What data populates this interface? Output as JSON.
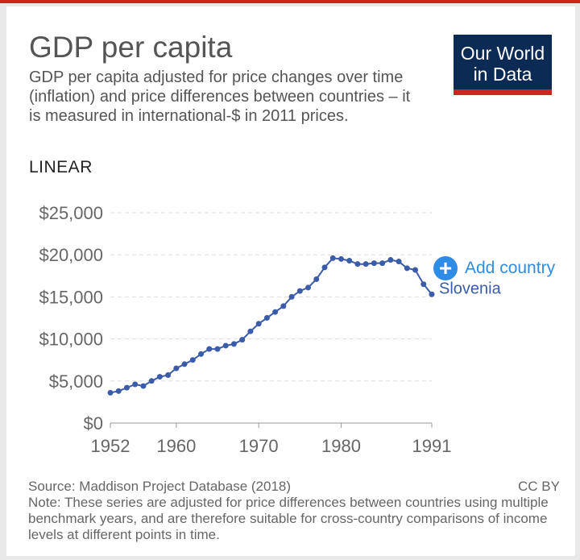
{
  "header": {
    "title": "GDP per capita",
    "subtitle": "GDP per capita adjusted for price changes over time (inflation) and price differences between countries – it is measured in international-$ in 2011 prices.",
    "logo_line1": "Our World",
    "logo_line2": "in Data"
  },
  "controls": {
    "scale_toggle": "LINEAR",
    "add_country": "Add country"
  },
  "footer": {
    "source": "Source: Maddison Project Database (2018)",
    "license": "CC BY",
    "note": "Note: These series are adjusted for price differences between countries using multiple benchmark years, and are therefore suitable for cross-country comparisons of income levels at different points in time."
  },
  "colors": {
    "series": "#3b5ca8",
    "accent": "#2f8ce6",
    "brand_navy": "#0b2a54",
    "brand_red": "#ce261e"
  },
  "chart_data": {
    "type": "line",
    "title": "GDP per capita",
    "xlabel": "",
    "ylabel": "",
    "xlim": [
      1952,
      1991
    ],
    "ylim": [
      0,
      25000
    ],
    "x_ticks": [
      1952,
      1960,
      1970,
      1980,
      1991
    ],
    "x_tick_labels": [
      "1952",
      "1960",
      "1970",
      "1980",
      "1991"
    ],
    "y_ticks": [
      0,
      5000,
      10000,
      15000,
      20000,
      25000
    ],
    "y_tick_labels": [
      "$0",
      "$5,000",
      "$10,000",
      "$15,000",
      "$20,000",
      "$25,000"
    ],
    "grid": "horizontal dashed",
    "legend": "end-of-line label",
    "series": [
      {
        "name": "Slovenia",
        "x": [
          1952,
          1953,
          1954,
          1955,
          1956,
          1957,
          1958,
          1959,
          1960,
          1961,
          1962,
          1963,
          1964,
          1965,
          1966,
          1967,
          1968,
          1969,
          1970,
          1971,
          1972,
          1973,
          1974,
          1975,
          1976,
          1977,
          1978,
          1979,
          1980,
          1981,
          1982,
          1983,
          1984,
          1985,
          1986,
          1987,
          1988,
          1989,
          1990,
          1991
        ],
        "values": [
          3600,
          3800,
          4200,
          4600,
          4400,
          5000,
          5500,
          5700,
          6500,
          7000,
          7500,
          8200,
          8800,
          8800,
          9200,
          9400,
          9900,
          10900,
          11800,
          12500,
          13200,
          13900,
          15000,
          15700,
          16100,
          17100,
          18500,
          19600,
          19500,
          19300,
          18900,
          18900,
          19000,
          19000,
          19400,
          19200,
          18400,
          18200,
          16500,
          15300
        ]
      }
    ]
  }
}
